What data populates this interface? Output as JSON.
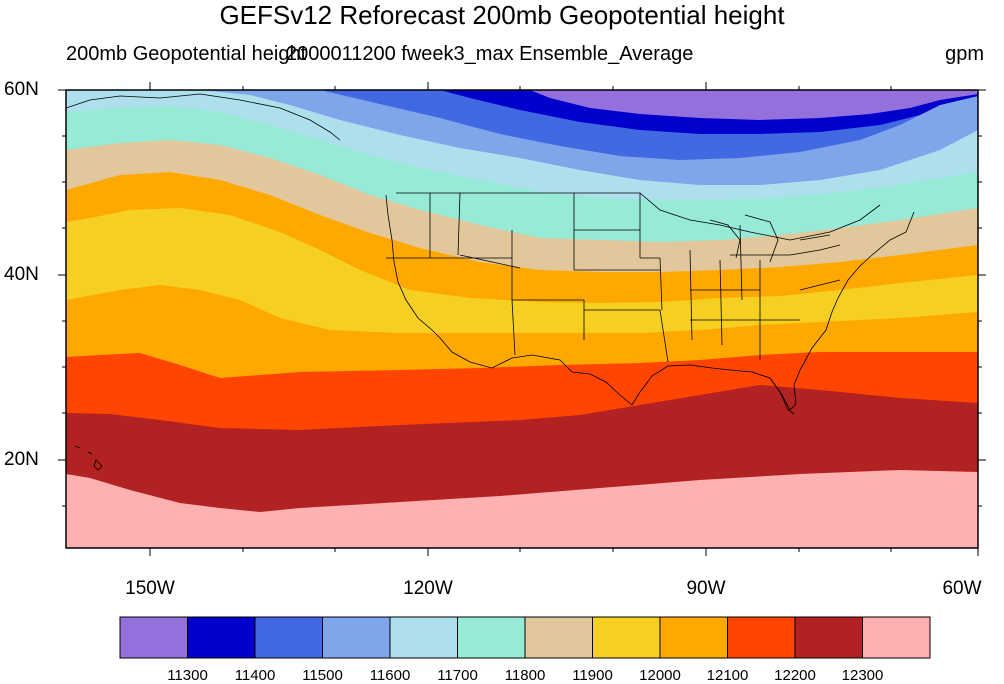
{
  "title": "GEFSv12 Reforecast 200mb Geopotential height",
  "subtitle_left": "200mb Geopotential height",
  "subtitle_center": "2000011200 fweek3_max Ensemble_Average",
  "units": "gpm",
  "lat_labels": [
    "60N",
    "40N",
    "20N"
  ],
  "lon_labels": [
    "150W",
    "120W",
    "90W",
    "60W"
  ],
  "colorbar": {
    "colors": [
      "#9370db",
      "#0000cd",
      "#4169e1",
      "#7fa5ea",
      "#aedfec",
      "#97ead6",
      "#e2c79c",
      "#f5cf22",
      "#ffa900",
      "#ff4500",
      "#b22222",
      "#ffb0b0"
    ],
    "labels": [
      "11300",
      "11400",
      "11500",
      "11600",
      "11700",
      "11800",
      "11900",
      "12000",
      "12100",
      "12200",
      "12300"
    ]
  },
  "map_data": {
    "variable": "200mb Geopotential height",
    "units": "gpm",
    "lat_range": [
      "10N",
      "60N"
    ],
    "lon_range": [
      "160W",
      "60W"
    ],
    "contour_levels": [
      11300,
      11400,
      11500,
      11600,
      11700,
      11800,
      11900,
      12000,
      12100,
      12200,
      12300
    ]
  }
}
